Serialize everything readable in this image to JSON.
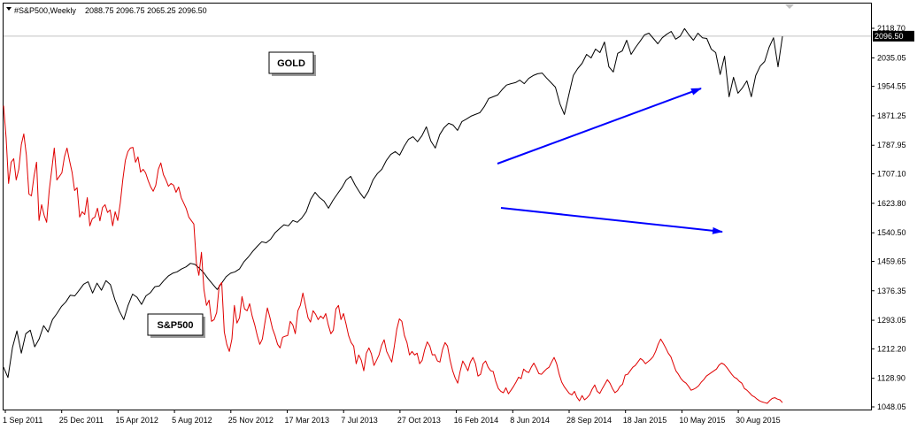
{
  "header": {
    "symbol": "#S&P500,Weekly",
    "ohlc": "2088.75 2096.75 2065.25 2096.50"
  },
  "colors": {
    "sp500_line": "#000000",
    "gold_line": "#e00000",
    "arrow": "#0000ff",
    "current_price_line": "#c0c0c0",
    "price_tag_bg": "#000000",
    "price_tag_text": "#ffffff"
  },
  "chart_data": {
    "type": "line",
    "title": "",
    "xlabel": "",
    "ylabel": "",
    "grid": false,
    "x_ticks": [
      "1 Sep 2011",
      "25 Dec 2011",
      "15 Apr 2012",
      "5 Aug 2012",
      "25 Nov 2012",
      "17 Mar 2013",
      "7 Jul 2013",
      "27 Oct 2013",
      "16 Feb 2014",
      "8 Jun 2014",
      "28 Sep 2014",
      "18 Jan 2015",
      "10 May 2015",
      "30 Aug 2015"
    ],
    "y_ticks": [
      "2118.70",
      "2035.05",
      "1954.55",
      "1871.25",
      "1787.95",
      "1707.10",
      "1623.80",
      "1540.50",
      "1459.65",
      "1376.35",
      "1293.05",
      "1212.20",
      "1128.90",
      "1048.05"
    ],
    "ylim": [
      1048.05,
      2118.7
    ],
    "current_price": "2096.50",
    "callouts": [
      "GOLD",
      "S&P500"
    ],
    "arrow_count": 2,
    "series": [
      {
        "name": "S&P500",
        "values": [
          1160,
          1131,
          1216,
          1263,
          1200,
          1255,
          1265,
          1218,
          1240,
          1278,
          1260,
          1295,
          1312,
          1332,
          1345,
          1364,
          1362,
          1378,
          1395,
          1402,
          1370,
          1398,
          1378,
          1405,
          1394,
          1352,
          1320,
          1295,
          1336,
          1367,
          1358,
          1338,
          1362,
          1371,
          1388,
          1390,
          1405,
          1418,
          1426,
          1430,
          1438,
          1444,
          1454,
          1451,
          1440,
          1427,
          1410,
          1395,
          1380,
          1398,
          1416,
          1426,
          1430,
          1438,
          1458,
          1472,
          1488,
          1502,
          1515,
          1512,
          1522,
          1540,
          1552,
          1563,
          1560,
          1575,
          1570,
          1582,
          1600,
          1635,
          1655,
          1640,
          1630,
          1610,
          1632,
          1650,
          1668,
          1690,
          1700,
          1675,
          1655,
          1638,
          1658,
          1690,
          1708,
          1720,
          1745,
          1762,
          1770,
          1760,
          1785,
          1805,
          1812,
          1798,
          1815,
          1840,
          1800,
          1780,
          1818,
          1838,
          1850,
          1845,
          1830,
          1855,
          1862,
          1870,
          1875,
          1880,
          1897,
          1920,
          1925,
          1930,
          1945,
          1958,
          1962,
          1965,
          1972,
          1962,
          1977,
          1985,
          1990,
          1992,
          1978,
          1965,
          1952,
          1905,
          1875,
          1930,
          1985,
          2005,
          2020,
          2045,
          2035,
          2060,
          2050,
          2080,
          2010,
          1995,
          2048,
          2055,
          2085,
          2045,
          2065,
          2082,
          2100,
          2105,
          2090,
          2075,
          2092,
          2102,
          2110,
          2088,
          2096,
          2118,
          2100,
          2085,
          2105,
          2092,
          2090,
          2060,
          2050,
          1988,
          2040,
          1925,
          1980,
          1935,
          1950,
          1970,
          1925,
          1985,
          2012,
          2025,
          2065,
          2092,
          2010,
          2096
        ]
      },
      {
        "name": "GOLD",
        "values": [
          1900,
          1810,
          1680,
          1740,
          1750,
          1690,
          1720,
          1790,
          1820,
          1760,
          1650,
          1645,
          1700,
          1740,
          1575,
          1620,
          1590,
          1570,
          1660,
          1720,
          1780,
          1690,
          1700,
          1710,
          1755,
          1780,
          1745,
          1712,
          1660,
          1668,
          1585,
          1600,
          1592,
          1640,
          1560,
          1580,
          1585,
          1610,
          1574,
          1612,
          1620,
          1598,
          1605,
          1560,
          1600,
          1575,
          1625,
          1690,
          1745,
          1770,
          1780,
          1782,
          1740,
          1755,
          1712,
          1720,
          1710,
          1688,
          1670,
          1658,
          1675,
          1720,
          1738,
          1705,
          1690,
          1672,
          1680,
          1675,
          1655,
          1670,
          1640,
          1625,
          1609,
          1585,
          1575,
          1565,
          1455,
          1420,
          1485,
          1380,
          1335,
          1350,
          1290,
          1295,
          1315,
          1390,
          1400,
          1260,
          1225,
          1205,
          1240,
          1335,
          1285,
          1300,
          1360,
          1325,
          1320,
          1340,
          1305,
          1280,
          1250,
          1225,
          1240,
          1285,
          1328,
          1300,
          1270,
          1250,
          1225,
          1215,
          1245,
          1248,
          1250,
          1290,
          1280,
          1255,
          1320,
          1336,
          1370,
          1335,
          1300,
          1288,
          1320,
          1310,
          1295,
          1305,
          1298,
          1312,
          1280,
          1255,
          1265,
          1325,
          1335,
          1295,
          1312,
          1282,
          1250,
          1230,
          1220,
          1170,
          1195,
          1180,
          1150,
          1200,
          1215,
          1198,
          1165,
          1180,
          1195,
          1222,
          1238,
          1205,
          1190,
          1175,
          1218,
          1268,
          1297,
          1290,
          1250,
          1230,
          1195,
          1205,
          1195,
          1200,
          1170,
          1180,
          1210,
          1232,
          1220,
          1195,
          1196,
          1178,
          1175,
          1210,
          1230,
          1220,
          1180,
          1150,
          1130,
          1115,
          1150,
          1178,
          1165,
          1150,
          1175,
          1188,
          1170,
          1135,
          1140,
          1170,
          1178,
          1160,
          1150,
          1148,
          1120,
          1100,
          1092,
          1088,
          1102,
          1085,
          1095,
          1106,
          1118,
          1132,
          1128,
          1155,
          1148,
          1145,
          1160,
          1172,
          1158,
          1142,
          1140,
          1148,
          1155,
          1160,
          1175,
          1188,
          1170,
          1140,
          1118,
          1105,
          1095,
          1086,
          1082,
          1092,
          1075,
          1065,
          1080,
          1068,
          1074,
          1082,
          1098,
          1110,
          1092,
          1086,
          1100,
          1112,
          1125,
          1115,
          1100,
          1088,
          1094,
          1106,
          1112,
          1138,
          1140,
          1150,
          1160,
          1165,
          1175,
          1185,
          1180,
          1170,
          1176,
          1182,
          1190,
          1205,
          1225,
          1240,
          1228,
          1215,
          1200,
          1190,
          1170,
          1150,
          1140,
          1128,
          1120,
          1115,
          1106,
          1095,
          1098,
          1102,
          1108,
          1118,
          1125,
          1135,
          1140,
          1145,
          1150,
          1155,
          1166,
          1172,
          1168,
          1160,
          1150,
          1140,
          1132,
          1128,
          1120,
          1115,
          1100,
          1095,
          1088,
          1080,
          1076,
          1070,
          1065,
          1062,
          1060,
          1058,
          1066,
          1072,
          1074,
          1070,
          1068,
          1060
        ]
      }
    ]
  }
}
